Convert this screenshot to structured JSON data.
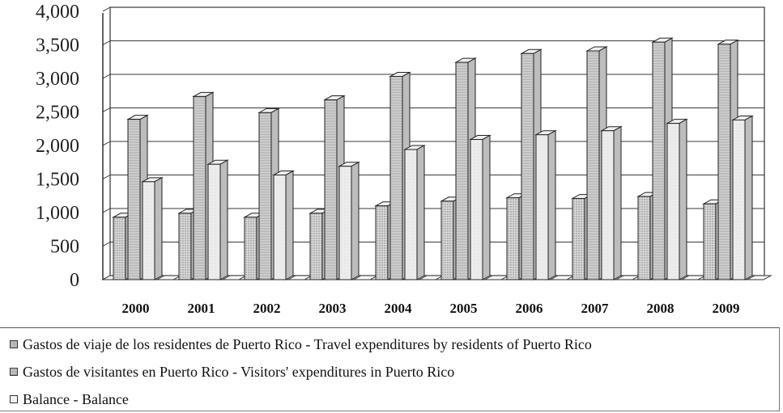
{
  "chart_data": {
    "type": "bar",
    "categories": [
      "2000",
      "2001",
      "2002",
      "2003",
      "2004",
      "2005",
      "2006",
      "2007",
      "2008",
      "2009"
    ],
    "series": [
      {
        "name": "Gastos de viaje de los residentes de Puerto Rico - Travel expenditures by residents of Puerto Rico",
        "values": [
          930,
          990,
          930,
          990,
          1100,
          1170,
          1220,
          1210,
          1240,
          1130
        ]
      },
      {
        "name": "Gastos de visitantes en Puerto Rico - Visitors' expenditures in Puerto Rico",
        "values": [
          2390,
          2730,
          2490,
          2680,
          3030,
          3240,
          3370,
          3410,
          3540,
          3510
        ]
      },
      {
        "name": "Balance - Balance",
        "values": [
          1460,
          1720,
          1560,
          1690,
          1940,
          2090,
          2160,
          2220,
          2330,
          2380
        ]
      }
    ],
    "yticks": [
      "4,000",
      "3,500",
      "3,000",
      "2,500",
      "2,000",
      "1,500",
      "1,000",
      "500",
      "0"
    ],
    "ylim": [
      0,
      4000
    ],
    "grid": true,
    "legend_position": "bottom",
    "style": "3d-clustered-column",
    "colors": {
      "bar_fill": "#d0d0d0",
      "balance_fill": "#e6e6e6",
      "grid": "#444444"
    }
  }
}
